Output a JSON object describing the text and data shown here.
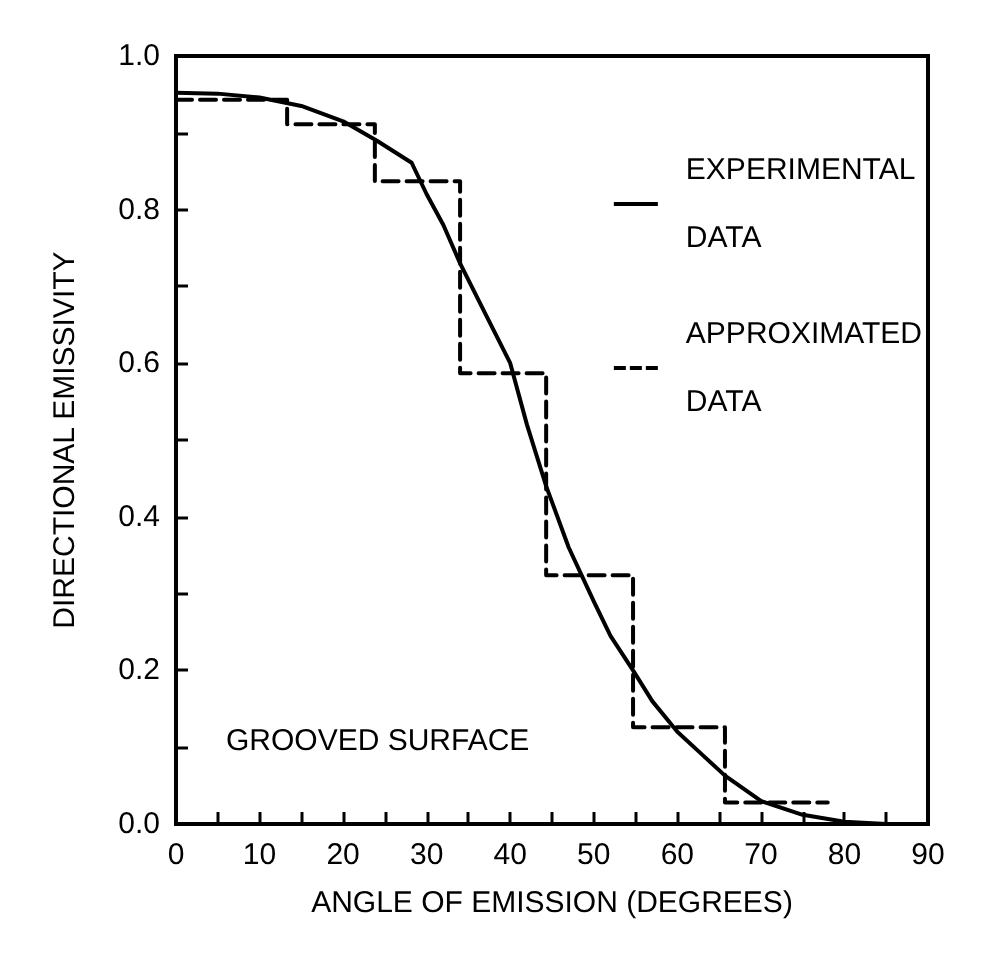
{
  "chart_data": {
    "type": "line",
    "xlabel": "ANGLE OF EMISSION (DEGREES)",
    "ylabel": "DIRECTIONAL EMISSIVITY",
    "annotations": [
      "GROOVED SURFACE"
    ],
    "xlim": [
      0,
      90
    ],
    "ylim": [
      0,
      1
    ],
    "xticks": [
      0,
      {
        "value": 5,
        "label": null
      },
      10,
      {
        "value": 15,
        "label": null
      },
      20,
      {
        "value": 25,
        "label": null
      },
      30,
      {
        "value": 35,
        "label": null
      },
      40,
      {
        "value": 45,
        "label": null
      },
      50,
      {
        "value": 55,
        "label": null
      },
      60,
      {
        "value": 65,
        "label": null
      },
      70,
      {
        "value": 75,
        "label": null
      },
      80,
      {
        "value": 85,
        "label": null
      },
      90
    ],
    "yticks": [
      {
        "value": 0,
        "label": "0.0"
      },
      {
        "value": 0.1,
        "label": null
      },
      {
        "value": 0.2,
        "label": "0.2"
      },
      {
        "value": 0.3,
        "label": null
      },
      {
        "value": 0.4,
        "label": "0.4"
      },
      {
        "value": 0.5,
        "label": null
      },
      {
        "value": 0.6,
        "label": "0.6"
      },
      {
        "value": 0.7,
        "label": null
      },
      {
        "value": 0.8,
        "label": "0.8"
      },
      {
        "value": 0.9,
        "label": null
      },
      {
        "value": 1,
        "label": "1.0"
      }
    ],
    "grid": false,
    "legend": "top right",
    "marker": "none",
    "series": [
      {
        "name": "EXPERIMENTAL DATA",
        "color": "#000000",
        "line_style": "solid",
        "x": [
          0,
          5,
          10,
          15,
          20,
          24,
          28.2,
          30,
          32,
          34,
          37,
          40,
          42,
          44.3,
          47,
          50,
          52,
          54.7,
          57,
          60,
          63,
          65.7,
          70,
          75,
          80,
          85,
          90
        ],
        "values": [
          0.952,
          0.951,
          0.946,
          0.935,
          0.915,
          0.89,
          0.861,
          0.82,
          0.78,
          0.73,
          0.665,
          0.6,
          0.52,
          0.44,
          0.36,
          0.29,
          0.245,
          0.2,
          0.16,
          0.12,
          0.09,
          0.063,
          0.03,
          0.012,
          0.003,
          0,
          0
        ]
      },
      {
        "name": "APPROXIMATED DATA",
        "type": "step",
        "color": "#000000",
        "line_style": "dashed",
        "x": [
          0,
          13.3,
          23.8,
          34,
          44.3,
          54.7,
          65.7,
          78
        ],
        "values": [
          0.943,
          0.911,
          0.837,
          0.587,
          0.324,
          0.126,
          0.028,
          0.028
        ]
      }
    ]
  }
}
